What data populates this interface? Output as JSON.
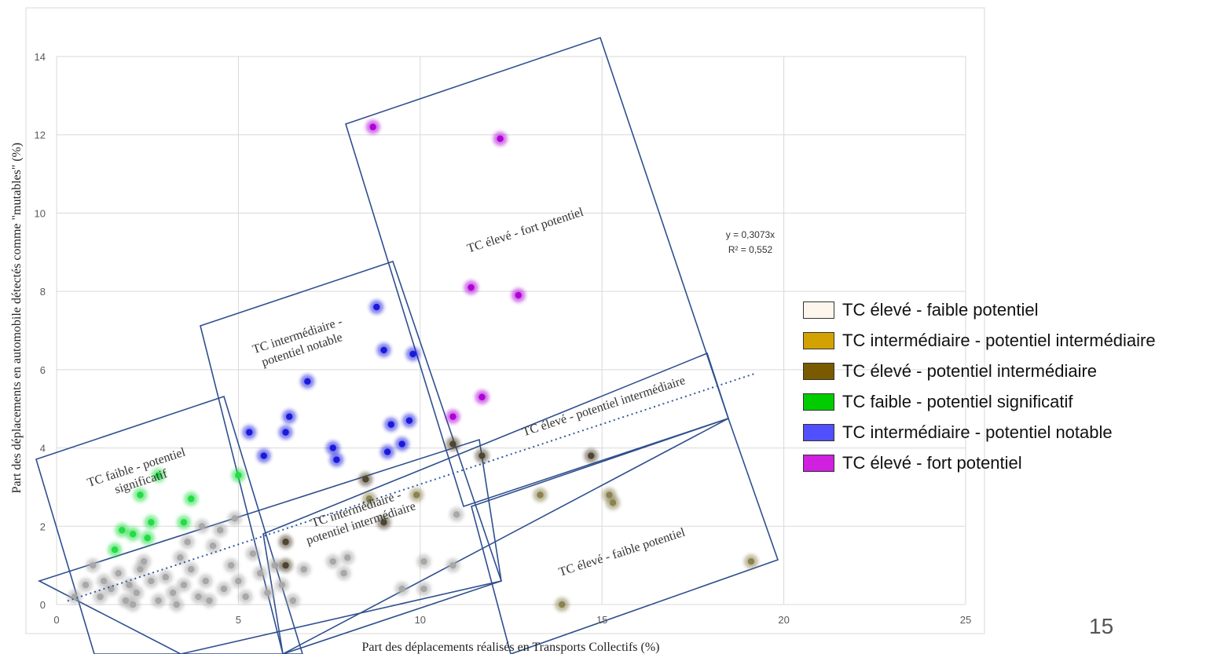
{
  "chart_data": {
    "type": "scatter",
    "xlabel": "Part des déplacements réalisés en Transports Collectifs (%)",
    "ylabel": "Part des déplacements en automobile détectés comme \"mutables\" (%)",
    "xlim": [
      0,
      25
    ],
    "ylim": [
      0,
      14
    ],
    "x_ticks": [
      "0",
      "5",
      "10",
      "15",
      "20",
      "25"
    ],
    "y_ticks": [
      "0",
      "2",
      "4",
      "6",
      "8",
      "10",
      "12",
      "14"
    ],
    "grid": true,
    "trendline": {
      "slope": 0.3073,
      "x_end": 19.2,
      "equation": "y = 0,3073x",
      "r2": "R² = 0,552"
    },
    "zones": [
      {
        "label_lines": [
          "TC faible - potentiel",
          "significatif"
        ]
      },
      {
        "label_lines": [
          "TC intermédiaire -",
          "potentiel notable"
        ]
      },
      {
        "label_lines": [
          "TC élevé - fort potentiel"
        ]
      },
      {
        "label_lines": [
          "TC élevé - potentiel intermédiaire"
        ]
      },
      {
        "label_lines": [
          "TC intermédiaire -",
          "potentiel intermédiaire"
        ]
      },
      {
        "label_lines": [
          "TC élevé - faible potentiel"
        ]
      }
    ],
    "series": [
      {
        "name": "TC élevé - faible potentiel",
        "swatch": "#fdf6ec",
        "color": "#a8a8a8",
        "points": [
          [
            0.5,
            0.2
          ],
          [
            0.8,
            0.5
          ],
          [
            1.0,
            1.0
          ],
          [
            1.2,
            0.2
          ],
          [
            1.5,
            0.4
          ],
          [
            1.7,
            0.8
          ],
          [
            1.9,
            0.1
          ],
          [
            2.0,
            0.5
          ],
          [
            2.2,
            0.3
          ],
          [
            2.4,
            1.1
          ],
          [
            2.6,
            0.6
          ],
          [
            2.8,
            0.1
          ],
          [
            3.0,
            0.7
          ],
          [
            3.2,
            0.3
          ],
          [
            3.4,
            1.2
          ],
          [
            3.5,
            0.5
          ],
          [
            3.7,
            0.9
          ],
          [
            3.9,
            0.2
          ],
          [
            4.1,
            0.6
          ],
          [
            4.3,
            1.5
          ],
          [
            4.5,
            1.9
          ],
          [
            4.6,
            0.4
          ],
          [
            4.8,
            1.0
          ],
          [
            5.0,
            0.6
          ],
          [
            5.2,
            0.2
          ],
          [
            5.4,
            1.3
          ],
          [
            5.6,
            0.8
          ],
          [
            5.8,
            0.3
          ],
          [
            6.0,
            1.0
          ],
          [
            6.2,
            0.5
          ],
          [
            6.5,
            0.1
          ],
          [
            6.8,
            0.9
          ],
          [
            7.6,
            1.1
          ],
          [
            7.9,
            0.8
          ],
          [
            8.0,
            1.2
          ],
          [
            9.5,
            0.4
          ],
          [
            10.1,
            1.1
          ],
          [
            10.1,
            0.4
          ],
          [
            10.9,
            1.0
          ],
          [
            11.0,
            2.3
          ],
          [
            2.3,
            0.9
          ],
          [
            3.6,
            1.6
          ],
          [
            4.0,
            2.0
          ],
          [
            4.9,
            2.2
          ],
          [
            1.3,
            0.6
          ],
          [
            2.1,
            0.0
          ],
          [
            3.3,
            0.0
          ],
          [
            4.2,
            0.1
          ]
        ]
      },
      {
        "name": "TC intermédiaire - potentiel intermédiaire",
        "swatch": "#d4a200",
        "color": "#8a8350",
        "points": [
          [
            9.9,
            2.8
          ],
          [
            13.3,
            2.8
          ],
          [
            15.2,
            2.8
          ],
          [
            15.3,
            2.6
          ],
          [
            13.9,
            0.0
          ],
          [
            19.1,
            1.1
          ],
          [
            8.6,
            2.7
          ]
        ]
      },
      {
        "name": "TC élevé - potentiel intermédiaire",
        "swatch": "#7a5a00",
        "color": "#4f4530",
        "points": [
          [
            10.9,
            4.1
          ],
          [
            11.7,
            3.8
          ],
          [
            14.7,
            3.8
          ],
          [
            6.3,
            1.6
          ],
          [
            6.3,
            1.0
          ],
          [
            9.0,
            2.1
          ],
          [
            8.5,
            3.2
          ]
        ]
      },
      {
        "name": "TC faible - potentiel significatif",
        "swatch": "#00cc00",
        "color": "#22dd44",
        "points": [
          [
            2.8,
            3.3
          ],
          [
            5.0,
            3.3
          ],
          [
            2.3,
            2.8
          ],
          [
            3.7,
            2.7
          ],
          [
            2.6,
            2.1
          ],
          [
            3.5,
            2.1
          ],
          [
            1.8,
            1.9
          ],
          [
            2.1,
            1.8
          ],
          [
            2.5,
            1.7
          ],
          [
            1.6,
            1.4
          ]
        ]
      },
      {
        "name": "TC intermédiaire - potentiel notable",
        "swatch": "#5050ff",
        "color": "#1a1add",
        "points": [
          [
            8.8,
            7.6
          ],
          [
            9.0,
            6.5
          ],
          [
            9.8,
            6.4
          ],
          [
            6.9,
            5.7
          ],
          [
            6.4,
            4.8
          ],
          [
            9.2,
            4.6
          ],
          [
            9.7,
            4.7
          ],
          [
            5.3,
            4.4
          ],
          [
            6.3,
            4.4
          ],
          [
            9.5,
            4.1
          ],
          [
            5.7,
            3.8
          ],
          [
            7.6,
            4.0
          ],
          [
            7.7,
            3.7
          ],
          [
            9.1,
            3.9
          ]
        ]
      },
      {
        "name": "TC élevé - fort potentiel",
        "swatch": "#d020e0",
        "color": "#b000d8",
        "points": [
          [
            8.7,
            12.2
          ],
          [
            12.2,
            11.9
          ],
          [
            11.4,
            8.1
          ],
          [
            12.7,
            7.9
          ],
          [
            11.7,
            5.3
          ],
          [
            10.9,
            4.8
          ]
        ]
      }
    ]
  },
  "page_number": "15"
}
